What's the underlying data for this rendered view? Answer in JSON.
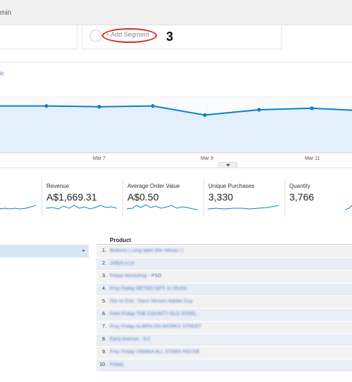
{
  "topbar": {
    "admin_text": "min"
  },
  "segments": {
    "add_segment": "+ Add Segment",
    "annotation_number": "3"
  },
  "chart_area": {
    "metric_tag": "ic"
  },
  "chart_data": {
    "type": "area",
    "title": "",
    "xlabel": "",
    "ylabel": "",
    "x_tick_labels": [
      "Mar 7",
      "Mar 9",
      "Mar 11"
    ],
    "x": [
      0,
      1,
      2,
      3,
      4,
      5,
      6,
      7
    ],
    "values": [
      0.62,
      0.62,
      0.61,
      0.62,
      0.5,
      0.57,
      0.59,
      0.56
    ],
    "ylim": [
      0,
      1
    ],
    "grid": true,
    "color": "#0f7fc7"
  },
  "metrics": [
    {
      "title": "",
      "value": ""
    },
    {
      "title": "Revenue",
      "value": "A$1,669.31"
    },
    {
      "title": "Average Order Value",
      "value": "A$0.50"
    },
    {
      "title": "Unique Purchases",
      "value": "3,330"
    },
    {
      "title": "Quantity",
      "value": "3,766"
    }
  ],
  "table": {
    "column_header": "Product",
    "rows": [
      {
        "idx": "1.",
        "name": "Buttons | Long label (Re rebuty | )"
      },
      {
        "idx": "2.",
        "name": "JuBy/Lu | e"
      },
      {
        "idx": "3.",
        "name_blur": "Friday Workshop",
        "name_clear": " - PSD"
      },
      {
        "idx": "4.",
        "name": "Froy Friday RETRO OPT: 4 I RUN1"
      },
      {
        "idx": "5.",
        "name": "Sta rw Exit - Deco Version Adobe Guy"
      },
      {
        "idx": "6.",
        "name": "Free Friday THE COUNTY OLD STEEL"
      },
      {
        "idx": "7.",
        "name": "Froy Friday ALBEN ON WORKS STREET"
      },
      {
        "idx": "8.",
        "name": "Early Avenue - 5.0"
      },
      {
        "idx": "9.",
        "name": "Froy Friday UNWAA ALL STARS HOUSE"
      },
      {
        "idx": "10.",
        "name": "Friday"
      }
    ]
  },
  "colors": {
    "accent": "#0f7fc7",
    "fill": "#e3f0fb",
    "annotation": "#dd2222"
  }
}
